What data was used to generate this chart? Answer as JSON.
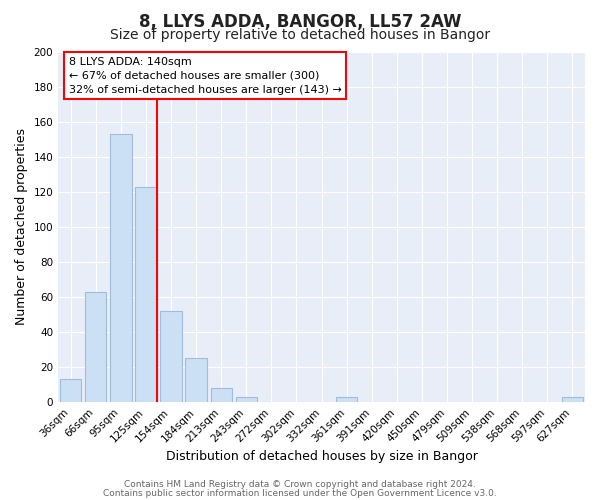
{
  "title": "8, LLYS ADDA, BANGOR, LL57 2AW",
  "subtitle": "Size of property relative to detached houses in Bangor",
  "xlabel": "Distribution of detached houses by size in Bangor",
  "ylabel": "Number of detached properties",
  "categories": [
    "36sqm",
    "66sqm",
    "95sqm",
    "125sqm",
    "154sqm",
    "184sqm",
    "213sqm",
    "243sqm",
    "272sqm",
    "302sqm",
    "332sqm",
    "361sqm",
    "391sqm",
    "420sqm",
    "450sqm",
    "479sqm",
    "509sqm",
    "538sqm",
    "568sqm",
    "597sqm",
    "627sqm"
  ],
  "values": [
    13,
    63,
    153,
    123,
    52,
    25,
    8,
    3,
    0,
    0,
    0,
    3,
    0,
    0,
    0,
    0,
    0,
    0,
    0,
    0,
    3
  ],
  "bar_color": "#cce0f5",
  "bar_edge_color": "#a0bcd8",
  "red_line_after_index": 3,
  "annotation_lines": [
    "8 LLYS ADDA: 140sqm",
    "← 67% of detached houses are smaller (300)",
    "32% of semi-detached houses are larger (143) →"
  ],
  "ylim": [
    0,
    200
  ],
  "yticks": [
    0,
    20,
    40,
    60,
    80,
    100,
    120,
    140,
    160,
    180,
    200
  ],
  "footer_line1": "Contains HM Land Registry data © Crown copyright and database right 2024.",
  "footer_line2": "Contains public sector information licensed under the Open Government Licence v3.0.",
  "fig_bg_color": "#ffffff",
  "plot_bg_color": "#e8eef8",
  "grid_color": "#ffffff",
  "title_fontsize": 12,
  "subtitle_fontsize": 10,
  "axis_label_fontsize": 9,
  "tick_fontsize": 7.5,
  "footer_fontsize": 6.5,
  "annotation_fontsize": 8
}
